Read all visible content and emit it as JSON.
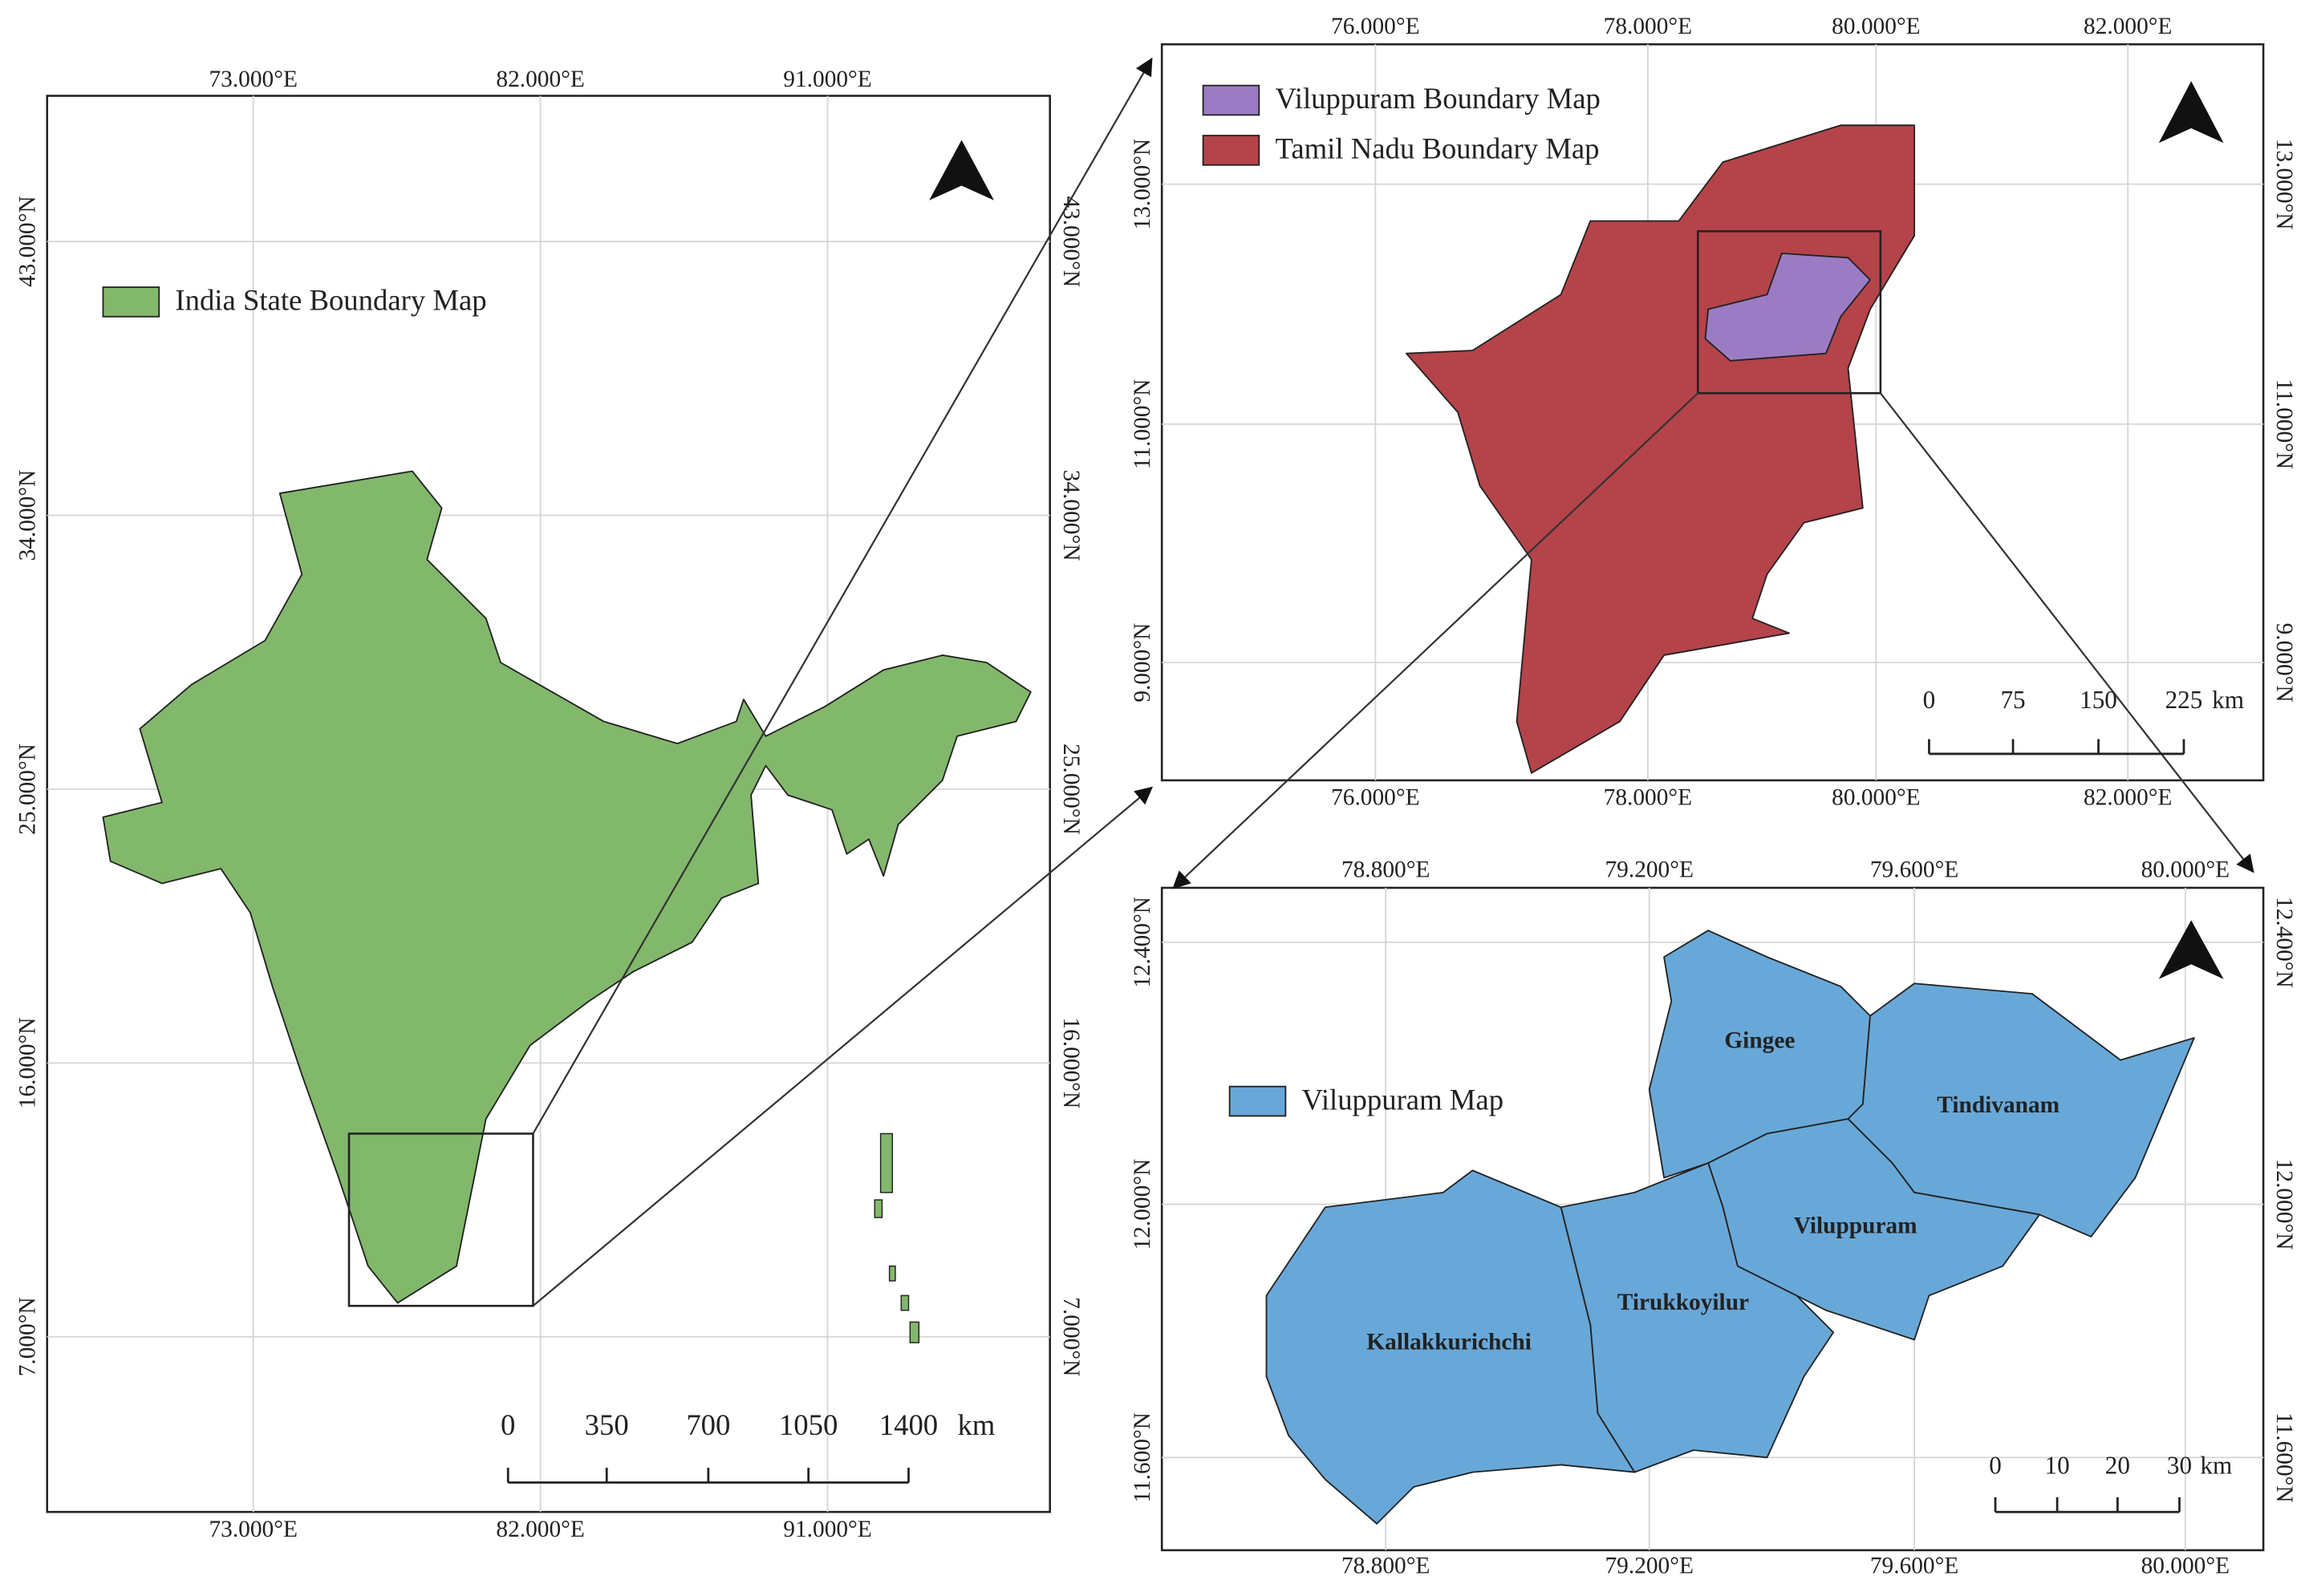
{
  "panels": [
    {
      "legend": [
        "India State Boundary Map"
      ],
      "lon_labels": [
        "73.000°E",
        "82.000°E",
        "91.000°E"
      ],
      "lat_labels": [
        "43.000°N",
        "34.000°N",
        "25.000°N",
        "16.000°N",
        "7.000°N"
      ],
      "scale": {
        "labels": [
          "0",
          "350",
          "700",
          "1050",
          "1400"
        ],
        "unit": "km"
      }
    },
    {
      "legend": [
        "Viluppuram Boundary Map",
        "Tamil Nadu Boundary Map"
      ],
      "lon_labels": [
        "76.000°E",
        "78.000°E",
        "80.000°E",
        "82.000°E"
      ],
      "lat_labels": [
        "13.000°N",
        "11.000°N",
        "9.000°N"
      ],
      "scale": {
        "labels": [
          "0",
          "75",
          "150",
          "225"
        ],
        "unit": "km"
      }
    },
    {
      "legend": [
        "Viluppuram Map"
      ],
      "lon_labels": [
        "78.800°E",
        "79.200°E",
        "79.600°E",
        "80.000°E"
      ],
      "lat_labels": [
        "12.400°N",
        "12.000°N",
        "11.600°N"
      ],
      "scale": {
        "labels": [
          "0",
          "10",
          "20",
          "30"
        ],
        "unit": "km"
      },
      "districts": [
        "Gingee",
        "Tindivanam",
        "Viluppuram",
        "Tirukkoyilur",
        "Kallakkurichchi"
      ]
    }
  ]
}
